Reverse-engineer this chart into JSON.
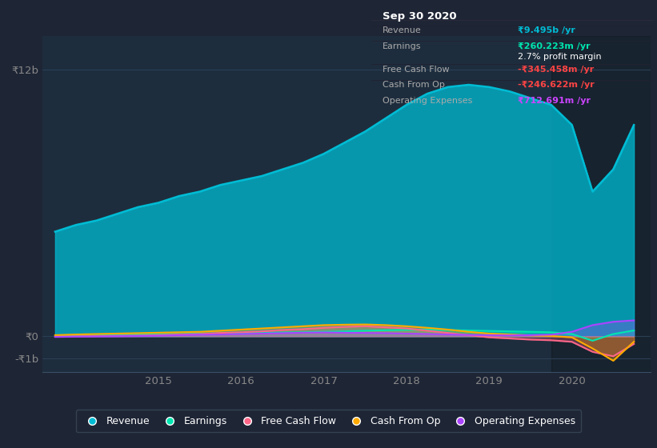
{
  "bg_color": "#1e2535",
  "plot_bg_color": "#1e2d3d",
  "grid_color": "#2a3f55",
  "title_box_bg": "#000000",
  "title_box": {
    "date": "Sep 30 2020",
    "rows": [
      {
        "label": "Revenue",
        "value": "₹9.495b /yr",
        "value_color": "#00bcd4"
      },
      {
        "label": "Earnings",
        "value": "₹260.223m /yr",
        "value_color": "#00e5b0",
        "sub": "2.7% profit margin",
        "sub_color": "#ffffff"
      },
      {
        "label": "Free Cash Flow",
        "value": "-₹345.458m /yr",
        "value_color": "#ff4444"
      },
      {
        "label": "Cash From Op",
        "value": "-₹246.622m /yr",
        "value_color": "#ff4444"
      },
      {
        "label": "Operating Expenses",
        "value": "₹712.691m /yr",
        "value_color": "#cc44ff"
      }
    ]
  },
  "ytick_labels": [
    "₹12b",
    "₹0",
    "-₹1b"
  ],
  "ytick_values": [
    12000000000.0,
    0.0,
    -1000000000.0
  ],
  "ylim": [
    -1600000000.0,
    13500000000.0
  ],
  "xlim_start": 2013.6,
  "xlim_end": 2020.95,
  "xtick_labels": [
    "2015",
    "2016",
    "2017",
    "2018",
    "2019",
    "2020"
  ],
  "xtick_positions": [
    2015,
    2016,
    2017,
    2018,
    2019,
    2020
  ],
  "shaded_x_start": 2019.75,
  "series": {
    "Revenue": {
      "color": "#00bcd4",
      "fill_alpha": 0.75,
      "x": [
        2013.75,
        2014.0,
        2014.25,
        2014.5,
        2014.75,
        2015.0,
        2015.25,
        2015.5,
        2015.75,
        2016.0,
        2016.25,
        2016.5,
        2016.75,
        2017.0,
        2017.25,
        2017.5,
        2017.75,
        2018.0,
        2018.25,
        2018.5,
        2018.75,
        2019.0,
        2019.25,
        2019.5,
        2019.75,
        2020.0,
        2020.25,
        2020.5,
        2020.75
      ],
      "y": [
        4700000000.0,
        5000000000.0,
        5200000000.0,
        5500000000.0,
        5800000000.0,
        6000000000.0,
        6300000000.0,
        6500000000.0,
        6800000000.0,
        7000000000.0,
        7200000000.0,
        7500000000.0,
        7800000000.0,
        8200000000.0,
        8700000000.0,
        9200000000.0,
        9800000000.0,
        10400000000.0,
        10900000000.0,
        11200000000.0,
        11300000000.0,
        11200000000.0,
        11000000000.0,
        10700000000.0,
        10400000000.0,
        9500000000.0,
        6500000000.0,
        7500000000.0,
        9495000000.0
      ]
    },
    "Earnings": {
      "color": "#00e5b0",
      "fill_alpha": 0.3,
      "x": [
        2013.75,
        2014.0,
        2014.25,
        2014.5,
        2014.75,
        2015.0,
        2015.25,
        2015.5,
        2015.75,
        2016.0,
        2016.25,
        2016.5,
        2016.75,
        2017.0,
        2017.25,
        2017.5,
        2017.75,
        2018.0,
        2018.25,
        2018.5,
        2018.75,
        2019.0,
        2019.25,
        2019.5,
        2019.75,
        2020.0,
        2020.25,
        2020.5,
        2020.75
      ],
      "y": [
        0.0,
        20000000.0,
        40000000.0,
        60000000.0,
        80000000.0,
        90000000.0,
        100000000.0,
        120000000.0,
        130000000.0,
        140000000.0,
        150000000.0,
        170000000.0,
        180000000.0,
        200000000.0,
        220000000.0,
        250000000.0,
        270000000.0,
        290000000.0,
        300000000.0,
        280000000.0,
        260000000.0,
        240000000.0,
        220000000.0,
        200000000.0,
        180000000.0,
        100000000.0,
        -200000000.0,
        100000000.0,
        260223000.0
      ]
    },
    "FreeCashFlow": {
      "color": "#ff6688",
      "fill_alpha": 0.3,
      "x": [
        2013.75,
        2014.0,
        2014.25,
        2014.5,
        2014.75,
        2015.0,
        2015.25,
        2015.5,
        2015.75,
        2016.0,
        2016.25,
        2016.5,
        2016.75,
        2017.0,
        2017.25,
        2017.5,
        2017.75,
        2018.0,
        2018.25,
        2018.5,
        2018.75,
        2019.0,
        2019.25,
        2019.5,
        2019.75,
        2020.0,
        2020.25,
        2020.5,
        2020.75
      ],
      "y": [
        -10000000.0,
        -5000000.0,
        10000000.0,
        20000000.0,
        30000000.0,
        50000000.0,
        80000000.0,
        100000000.0,
        150000000.0,
        180000000.0,
        220000000.0,
        280000000.0,
        320000000.0,
        380000000.0,
        420000000.0,
        450000000.0,
        400000000.0,
        350000000.0,
        250000000.0,
        150000000.0,
        50000000.0,
        -50000000.0,
        -100000000.0,
        -150000000.0,
        -180000000.0,
        -250000000.0,
        -700000000.0,
        -900000000.0,
        -345458000.0
      ]
    },
    "CashFromOp": {
      "color": "#ffaa00",
      "fill_alpha": 0.3,
      "x": [
        2013.75,
        2014.0,
        2014.25,
        2014.5,
        2014.75,
        2015.0,
        2015.25,
        2015.5,
        2015.75,
        2016.0,
        2016.25,
        2016.5,
        2016.75,
        2017.0,
        2017.25,
        2017.5,
        2017.75,
        2018.0,
        2018.25,
        2018.5,
        2018.75,
        2019.0,
        2019.25,
        2019.5,
        2019.75,
        2020.0,
        2020.25,
        2020.5,
        2020.75
      ],
      "y": [
        50000000.0,
        80000000.0,
        100000000.0,
        120000000.0,
        140000000.0,
        160000000.0,
        180000000.0,
        200000000.0,
        250000000.0,
        300000000.0,
        350000000.0,
        400000000.0,
        450000000.0,
        500000000.0,
        520000000.0,
        530000000.0,
        500000000.0,
        450000000.0,
        380000000.0,
        300000000.0,
        200000000.0,
        120000000.0,
        80000000.0,
        40000000.0,
        10000000.0,
        -50000000.0,
        -550000000.0,
        -1100000000.0,
        -246622000.0
      ]
    },
    "OperatingExpenses": {
      "color": "#aa44ff",
      "fill_alpha": 0.3,
      "x": [
        2013.75,
        2014.0,
        2014.25,
        2014.5,
        2014.75,
        2015.0,
        2015.25,
        2015.5,
        2015.75,
        2016.0,
        2016.25,
        2016.5,
        2016.75,
        2017.0,
        2017.25,
        2017.5,
        2017.75,
        2018.0,
        2018.25,
        2018.5,
        2018.75,
        2019.0,
        2019.25,
        2019.5,
        2019.75,
        2020.0,
        2020.25,
        2020.5,
        2020.75
      ],
      "y": [
        -30000000.0,
        -20000000.0,
        -10000000.0,
        0.0,
        10000000.0,
        20000000.0,
        50000000.0,
        70000000.0,
        80000000.0,
        100000000.0,
        120000000.0,
        140000000.0,
        160000000.0,
        170000000.0,
        160000000.0,
        150000000.0,
        140000000.0,
        120000000.0,
        100000000.0,
        80000000.0,
        60000000.0,
        50000000.0,
        40000000.0,
        50000000.0,
        70000000.0,
        200000000.0,
        500000000.0,
        650000000.0,
        712691000.0
      ]
    }
  },
  "legend": [
    {
      "label": "Revenue",
      "color": "#00bcd4"
    },
    {
      "label": "Earnings",
      "color": "#00e5b0"
    },
    {
      "label": "Free Cash Flow",
      "color": "#ff6688"
    },
    {
      "label": "Cash From Op",
      "color": "#ffaa00"
    },
    {
      "label": "Operating Expenses",
      "color": "#aa44ff"
    }
  ]
}
